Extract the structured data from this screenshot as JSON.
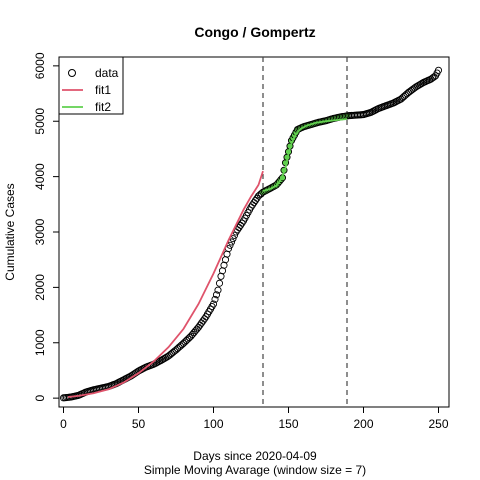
{
  "chart_data": {
    "type": "scatter",
    "title": "Congo / Gompertz",
    "xlabel": "Days since 2020-04-09",
    "xlabel2": "Simple Moving Avarage (window size = 7)",
    "ylabel": "Cumulative Cases",
    "xlim": [
      -3,
      257
    ],
    "ylim": [
      -160,
      6160
    ],
    "xticks": [
      "0",
      "50",
      "100",
      "150",
      "200",
      "250"
    ],
    "yticks": [
      "0",
      "1000",
      "2000",
      "3000",
      "4000",
      "5000",
      "6000"
    ],
    "vlines": [
      133,
      189
    ],
    "legend": {
      "position": "top-left",
      "entries": [
        {
          "label": "data",
          "marker": "circle",
          "color": "#000000"
        },
        {
          "label": "fit1",
          "marker": "line",
          "color": "#DF536B"
        },
        {
          "label": "fit2",
          "marker": "line",
          "color": "#61D04F"
        }
      ]
    },
    "data_anchors": [
      [
        0,
        5
      ],
      [
        5,
        20
      ],
      [
        10,
        50
      ],
      [
        15,
        110
      ],
      [
        20,
        150
      ],
      [
        25,
        180
      ],
      [
        30,
        210
      ],
      [
        35,
        260
      ],
      [
        40,
        330
      ],
      [
        45,
        400
      ],
      [
        50,
        490
      ],
      [
        55,
        560
      ],
      [
        60,
        610
      ],
      [
        65,
        680
      ],
      [
        70,
        760
      ],
      [
        75,
        870
      ],
      [
        80,
        990
      ],
      [
        85,
        1120
      ],
      [
        90,
        1280
      ],
      [
        95,
        1470
      ],
      [
        100,
        1700
      ],
      [
        103,
        1950
      ],
      [
        105,
        2200
      ],
      [
        110,
        2700
      ],
      [
        115,
        3000
      ],
      [
        120,
        3200
      ],
      [
        125,
        3450
      ],
      [
        130,
        3650
      ],
      [
        133,
        3720
      ],
      [
        138,
        3790
      ],
      [
        142,
        3850
      ],
      [
        146,
        3980
      ],
      [
        148,
        4250
      ],
      [
        150,
        4450
      ],
      [
        152,
        4650
      ],
      [
        156,
        4850
      ],
      [
        160,
        4900
      ],
      [
        165,
        4940
      ],
      [
        170,
        4980
      ],
      [
        175,
        5010
      ],
      [
        180,
        5050
      ],
      [
        185,
        5080
      ],
      [
        190,
        5100
      ],
      [
        195,
        5110
      ],
      [
        200,
        5120
      ],
      [
        205,
        5160
      ],
      [
        210,
        5230
      ],
      [
        215,
        5280
      ],
      [
        220,
        5330
      ],
      [
        225,
        5400
      ],
      [
        230,
        5520
      ],
      [
        235,
        5620
      ],
      [
        240,
        5700
      ],
      [
        245,
        5760
      ],
      [
        248,
        5820
      ],
      [
        250,
        5920
      ]
    ],
    "series": [
      {
        "name": "fit1",
        "color": "#DF536B",
        "x": [
          3,
          10,
          20,
          30,
          40,
          50,
          60,
          70,
          80,
          90,
          100,
          110,
          120,
          125,
          130,
          133
        ],
        "y": [
          20,
          40,
          90,
          160,
          280,
          450,
          660,
          920,
          1250,
          1700,
          2250,
          2850,
          3400,
          3640,
          3850,
          4100
        ]
      },
      {
        "name": "fit2",
        "color": "#61D04F",
        "x": [
          133,
          138,
          142,
          145,
          148,
          150,
          152,
          155,
          158,
          162,
          168,
          175,
          182,
          189
        ],
        "y": [
          3740,
          3780,
          3840,
          3950,
          4150,
          4420,
          4600,
          4770,
          4860,
          4920,
          4970,
          5000,
          5020,
          5040
        ]
      }
    ],
    "data_color": "#000000",
    "data_segment_color": "#61D04F",
    "data_segment_range": [
      133,
      189
    ]
  }
}
